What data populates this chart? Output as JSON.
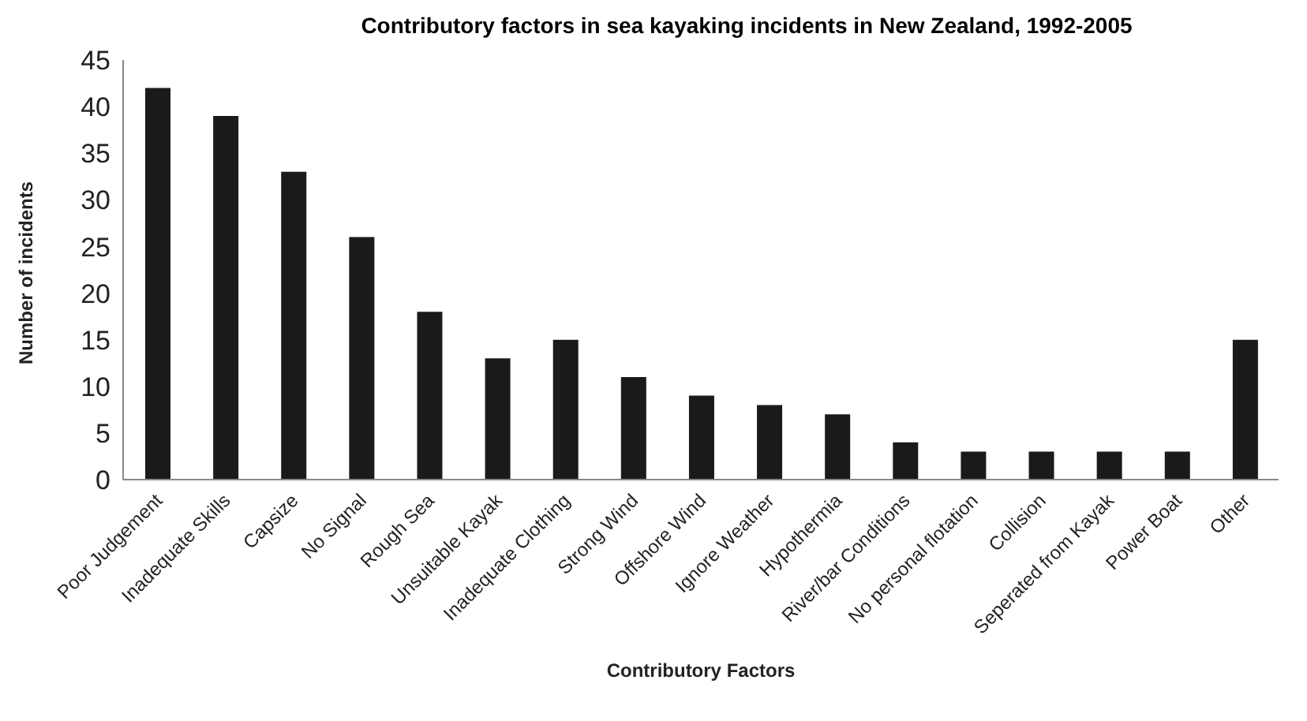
{
  "chart_data": {
    "type": "bar",
    "title": "Contributory factors in sea kayaking incidents in New Zealand, 1992-2005",
    "xlabel": "Contributory Factors",
    "ylabel": "Number of incidents",
    "categories": [
      "Poor Judgement",
      "Inadequate Skills",
      "Capsize",
      "No Signal",
      "Rough Sea",
      "Unsuitable Kayak",
      "Inadequate Clothing",
      "Strong Wind",
      "Offshore Wind",
      "Ignore Weather",
      "Hypothermia",
      "River/bar Conditions",
      "No personal flotation",
      "Collision",
      "Seperated from Kayak",
      "Power Boat",
      "Other"
    ],
    "values": [
      42,
      39,
      33,
      26,
      18,
      13,
      15,
      11,
      9,
      8,
      7,
      4,
      3,
      3,
      3,
      3,
      15
    ],
    "color": "#1a1a1a",
    "ylim": [
      0,
      45
    ],
    "yticks": [
      0,
      5,
      10,
      15,
      20,
      25,
      30,
      35,
      40,
      45
    ],
    "grid": false,
    "legend": false
  }
}
